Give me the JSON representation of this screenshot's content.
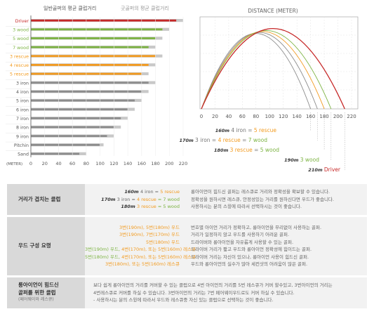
{
  "colors": {
    "red": "#c62828",
    "green": "#7cb342",
    "orange": "#f29a1e",
    "gray": "#8c8c8c",
    "lightgray": "#c8c8c8"
  },
  "chart_data": [
    {
      "type": "bar",
      "orientation": "horizontal",
      "legend": [
        "일반골퍼의 평균 클럽거리",
        "굿골퍼의 평균 클럽거리"
      ],
      "xlabel": "(METER)",
      "xticks": [
        0,
        20,
        40,
        60,
        80,
        100,
        120,
        140,
        160,
        180,
        200,
        220
      ],
      "xlim": [
        0,
        220
      ],
      "categories": [
        "Driver",
        "3 wood",
        "5 wood",
        "7 wood",
        "3 rescue",
        "4 rescue",
        "5 rescue",
        "3 iron",
        "4 iron",
        "5 iron",
        "6 iron",
        "7 iron",
        "8 iron",
        "9 iron",
        "Pitchin",
        "Sand"
      ],
      "category_colors": [
        "red",
        "green",
        "green",
        "green",
        "orange",
        "orange",
        "orange",
        "gray",
        "gray",
        "gray",
        "gray",
        "gray",
        "gray",
        "gray",
        "gray",
        "gray"
      ],
      "series": [
        {
          "name": "일반골퍼의 평균 클럽거리",
          "values": [
            210,
            190,
            180,
            170,
            180,
            170,
            160,
            170,
            160,
            150,
            140,
            130,
            120,
            110,
            100,
            70
          ]
        },
        {
          "name": "굿골퍼의 평균 클럽거리",
          "values": [
            220,
            200,
            190,
            180,
            190,
            180,
            170,
            180,
            170,
            160,
            150,
            140,
            130,
            120,
            105,
            80
          ]
        }
      ]
    },
    {
      "type": "line",
      "title": "DISTANCE (METER)",
      "xticks": [
        0,
        20,
        40,
        60,
        80,
        100,
        120,
        140,
        160,
        180,
        200,
        220
      ],
      "xlim": [
        0,
        220
      ],
      "arcs": [
        {
          "color": "gray",
          "landing": 160
        },
        {
          "color": "gray",
          "landing": 170
        },
        {
          "color": "orange",
          "landing": 180
        },
        {
          "color": "green",
          "landing": 190
        },
        {
          "color": "red",
          "landing": 210
        }
      ],
      "annotations": [
        {
          "dist": "160m",
          "parts": [
            [
              "4 iron = ",
              "gray"
            ],
            [
              "5 rescue",
              "orange"
            ]
          ]
        },
        {
          "dist": "170m",
          "parts": [
            [
              "3 iron = ",
              "gray"
            ],
            [
              "4 rescue",
              "orange"
            ],
            [
              " = ",
              "gray"
            ],
            [
              "7 wood",
              "green"
            ]
          ]
        },
        {
          "dist": "180m",
          "parts": [
            [
              "3 rescue",
              "orange"
            ],
            [
              " = ",
              "gray"
            ],
            [
              "5 wood",
              "green"
            ]
          ]
        },
        {
          "dist": "190m",
          "parts": [
            [
              "3 wood",
              "green"
            ]
          ]
        },
        {
          "dist": "210m",
          "parts": [
            [
              "Driver",
              "red"
            ]
          ]
        }
      ]
    }
  ],
  "table": {
    "row1": {
      "label": "거리가 겹치는 클럽",
      "lines": [
        {
          "dist": "160m",
          "parts": [
            [
              "4 iron = ",
              "gray"
            ],
            [
              "5 rescue",
              "orange"
            ]
          ]
        },
        {
          "dist": "170m",
          "parts": [
            [
              "3 iron = ",
              "gray"
            ],
            [
              "4 rescue",
              "orange"
            ],
            [
              " = 7 wood",
              "green"
            ]
          ]
        },
        {
          "dist": "180m",
          "parts": [
            [
              "3 rescue",
              "orange"
            ],
            [
              " = 5 wood",
              "green"
            ]
          ]
        }
      ],
      "desc": [
        "롱아이언이 힘드신 골퍼는 레스큐로 거리와 정확성을 확보할 수 있습니다.",
        "정확성을 원하시면 레스큐, 안정성있는 거리를 원하신다면 우드가 좋습니다.",
        "사용하시는 분의 스윙에 따라서 선택하시는 것이 좋습니다."
      ]
    },
    "row2": {
      "label": "우드 구성 요령",
      "lines": [
        [
          [
            "3번(190m), 5번(180m) 우드",
            "orange"
          ]
        ],
        [
          [
            "3번(190m), 7번(170m) 우드",
            "orange"
          ]
        ],
        [
          [
            "5번(180m) 우드",
            "orange"
          ]
        ],
        [
          [
            "3번(190m) 우드, ",
            "green"
          ],
          [
            "4번(170m), 또는 5번(160m) 레스큐",
            "orange"
          ]
        ],
        [
          [
            "5번(180m) 우드, ",
            "green"
          ],
          [
            "4번(170m), 또는 5번(160m) 레스큐",
            "orange"
          ]
        ],
        [
          [
            "3번(180m), 또는 5번(160m) 레스큐",
            "orange"
          ]
        ]
      ],
      "desc": [
        "번호별 아이언 거리가 정확하고, 롱아이언을 무리없이 사용하는 골퍼.",
        "거리가 일정하지 않고 우드를 사용하기 어려운 골퍼.",
        "드라이버와 롱아이언을 자유롭게 사용할 수 있는 골퍼.",
        "드라이버 거리가 짧고 우드와 롱아이언 정확성에 힘이드는 골퍼.",
        "드라이버 거리는 자신이 있으나, 롱아이언 사용이 힘드신 골퍼.",
        "우드와 롱아이언의 실수가 많아 세컨샷의 어려움이 많은 골퍼."
      ]
    },
    "row3": {
      "label": "롱아이언이 힘드신",
      "label2": "골퍼를 위한 클럽",
      "label3": "(페어웨이와 레스큐)",
      "desc": [
        "보다 쉽게 롱아이언의 거리를 커버할 수 있는 클럽으로 4번 아이언의 거리를 5번 레스큐가 커버 할수있고, 3번아이언의 거리는",
        "4번레스큐로 커버를 하실 수 있습니다. 3번아이언의 거리는 7번 페어웨이우드로도 커버 하실 수 있습니다.",
        "- 사용하시는 분의 스윙에 따라서 우드와 레스큐중 자신 있는 클럽으로 선택하는 것이 좋습니다."
      ]
    }
  }
}
